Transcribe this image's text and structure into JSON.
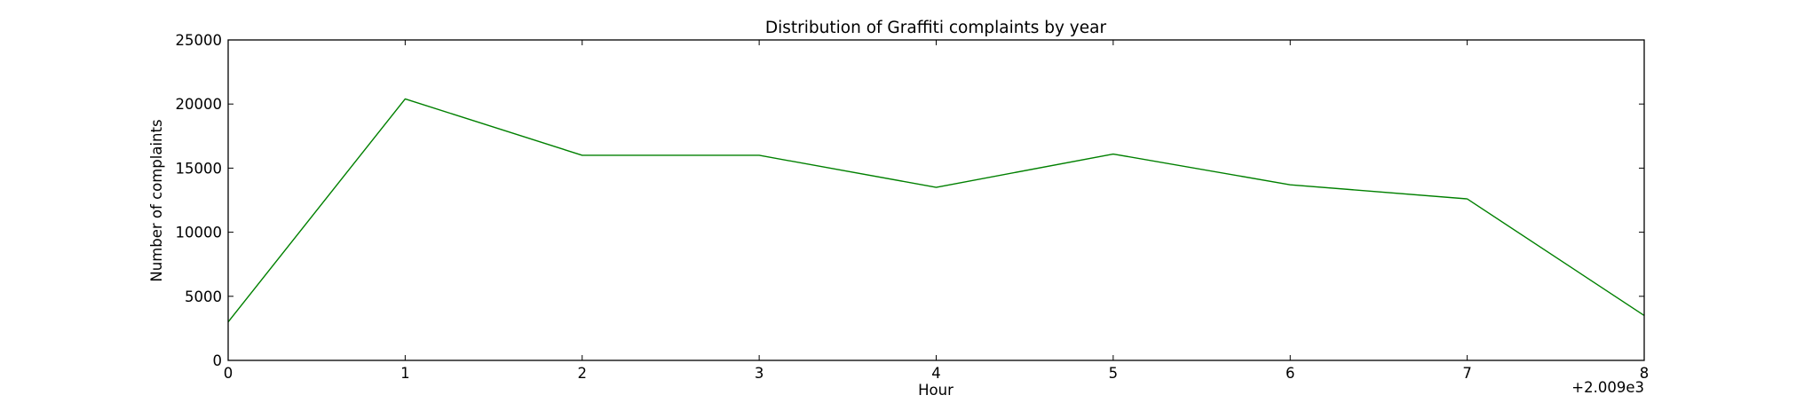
{
  "chart_data": {
    "type": "line",
    "title": "Distribution of  Graffiti complaints by year",
    "xlabel": "Hour",
    "ylabel": "Number of complaints",
    "x_offset_label": "+2.009e3",
    "x": [
      2009,
      2010,
      2011,
      2012,
      2013,
      2014,
      2015,
      2016,
      2017
    ],
    "xlim": [
      2009,
      2017
    ],
    "ylim": [
      0,
      25000
    ],
    "x_ticks": [
      2009,
      2010,
      2011,
      2012,
      2013,
      2014,
      2015,
      2016,
      2017
    ],
    "x_tick_labels": [
      "0",
      "1",
      "2",
      "3",
      "4",
      "5",
      "6",
      "7",
      "8"
    ],
    "y_ticks": [
      0,
      5000,
      10000,
      15000,
      20000,
      25000
    ],
    "y_tick_labels": [
      "0",
      "5000",
      "10000",
      "15000",
      "20000",
      "25000"
    ],
    "grid": false,
    "series": [
      {
        "color": "#008000",
        "values": [
          3000,
          20400,
          16000,
          16000,
          13500,
          16100,
          13700,
          12600,
          3500
        ]
      }
    ]
  }
}
